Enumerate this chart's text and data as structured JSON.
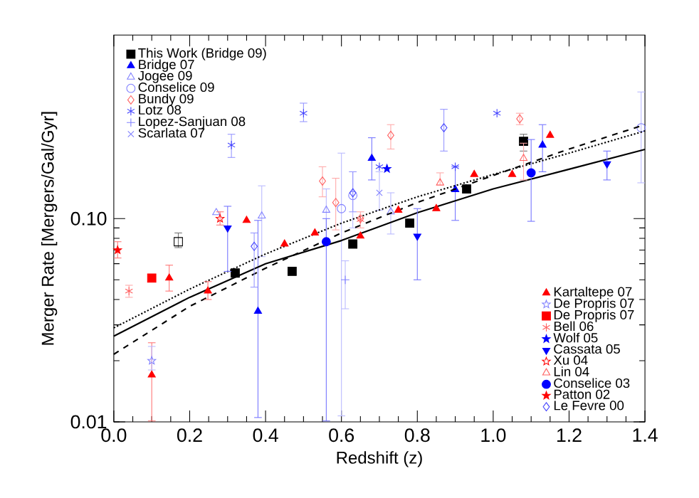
{
  "chart_data": {
    "type": "scatter",
    "xlabel": "Redshift (z)",
    "ylabel": "Merger Rate [Mergers/Gal/Gyr]",
    "xlim": [
      0,
      1.4
    ],
    "ylim": [
      0.01,
      0.8
    ],
    "log": true,
    "legend": "bottom right",
    "xticks": [
      {
        "value": 0,
        "label": "0.0"
      },
      {
        "value": 0.2,
        "label": "0.2"
      },
      {
        "value": 0.4,
        "label": "0.4"
      },
      {
        "value": 0.6,
        "label": "0.6"
      },
      {
        "value": 0.8,
        "label": "0.8"
      },
      {
        "value": 1.0,
        "label": "1.0"
      },
      {
        "value": 1.2,
        "label": "1.2"
      },
      {
        "value": 1.4,
        "label": "1.4"
      }
    ],
    "yticks": [
      {
        "value": 0.01,
        "label": "0.01"
      },
      {
        "value": 0.1,
        "label": "0.10"
      }
    ],
    "series": [
      {
        "type": "line",
        "color": "#000000",
        "line_style": "solid",
        "x": [
          0,
          0.2,
          0.4,
          0.6,
          0.8,
          1.0,
          1.2,
          1.4
        ],
        "values": [
          0.0264,
          0.041,
          0.06,
          0.078,
          0.107,
          0.14,
          0.175,
          0.219
        ]
      },
      {
        "type": "line",
        "color": "#000000",
        "line_style": "dashed",
        "x": [
          0,
          0.2,
          0.4,
          0.6,
          0.8,
          1.0,
          1.2,
          1.4
        ],
        "values": [
          0.0215,
          0.037,
          0.057,
          0.085,
          0.12,
          0.163,
          0.22,
          0.29
        ]
      },
      {
        "type": "line",
        "color": "#000000",
        "line_style": "dotted",
        "x": [
          0,
          0.2,
          0.4,
          0.6,
          0.8,
          1.0,
          1.2,
          1.4
        ],
        "values": [
          0.029,
          0.045,
          0.067,
          0.095,
          0.128,
          0.165,
          0.21,
          0.27
        ]
      },
      {
        "color": "#000000",
        "marker": "square",
        "x": [
          0.17
        ],
        "values": [
          0.077
        ],
        "errors": [
          [
            0.072,
            0.085
          ]
        ]
      },
      {
        "name": "This Work (Bridge 09)",
        "color": "#000000",
        "marker": "square",
        "x": [
          0.32,
          0.47,
          0.63,
          0.78,
          0.93,
          1.08
        ],
        "values": [
          0.054,
          0.055,
          0.075,
          0.095,
          0.14,
          0.24
        ],
        "errors": [
          null,
          null,
          null,
          null,
          null,
          [
            0.215,
            0.26
          ]
        ]
      },
      {
        "name": "Bridge 07",
        "color": "#0000ff",
        "marker": "triangle",
        "x": [
          0.38,
          0.68,
          0.9,
          1.13
        ],
        "values": [
          0.035,
          0.198,
          0.139,
          0.23
        ],
        "errors": [
          [
            0.0105,
            0.098
          ],
          [
            0.155,
            0.25
          ],
          [
            0.098,
            0.18
          ],
          [
            0.17,
            0.29
          ]
        ]
      },
      {
        "name": "Jogee 09",
        "color": "#8080ff",
        "marker": "triangle",
        "x": [
          0.27,
          0.39,
          0.56,
          0.73
        ],
        "values": [
          0.107,
          0.103,
          0.11,
          0.108
        ],
        "errors": [
          null,
          [
            0.065,
            0.145
          ],
          [
            0.075,
            0.14
          ],
          [
            0.084,
            0.134
          ]
        ]
      },
      {
        "name": "Conselice 09",
        "color": "#8080ff",
        "marker": "circle",
        "x": [
          0.6,
          0.63,
          1.39
        ],
        "values": [
          0.112,
          0.13,
          0.28
        ],
        "errors": [
          [
            0.0107,
            0.21
          ],
          [
            0.09,
            0.17
          ],
          [
            0.15,
            0.42
          ]
        ]
      },
      {
        "name": "Bundy 09",
        "color": "#ff6060",
        "marker": "diamond",
        "x": [
          0.55,
          0.585,
          0.65,
          0.73,
          1.07
        ],
        "values": [
          0.153,
          0.12,
          0.1,
          0.257,
          0.31
        ],
        "errors": [
          [
            0.128,
            0.18
          ],
          [
            0.088,
            0.158
          ],
          null,
          [
            0.22,
            0.29
          ],
          [
            0.29,
            0.33
          ]
        ]
      },
      {
        "name": "Lotz 08",
        "color": "#4040ff",
        "marker": "cross",
        "x": [
          0.31,
          0.5,
          0.7,
          0.9,
          1.01
        ],
        "values": [
          0.23,
          0.33,
          0.18,
          0.18,
          0.33
        ],
        "errors": [
          [
            0.2,
            0.26
          ],
          [
            0.3,
            0.37
          ],
          null,
          null,
          null
        ]
      },
      {
        "name": "Lopez-Sanjuan 08",
        "color": "#8080ff",
        "marker": "cross",
        "x": [
          0.61
        ],
        "values": [
          0.05
        ],
        "errors": [
          [
            0.036,
            0.062
          ]
        ]
      },
      {
        "name": "Scarlata 07",
        "color": "#8080ff",
        "marker": "cross",
        "x": [
          0.7
        ],
        "values": [
          0.134
        ],
        "errors": [
          [
            0.11,
            0.17
          ]
        ]
      },
      {
        "name": "Kartaltepe 07",
        "color": "#ff0000",
        "marker": "triangle",
        "x": [
          0.1,
          0.146,
          0.248,
          0.35,
          0.45,
          0.53,
          0.65,
          0.75,
          0.85,
          0.95,
          1.05,
          1.15
        ],
        "values": [
          0.017,
          0.051,
          0.044,
          0.098,
          0.075,
          0.085,
          0.082,
          0.11,
          0.112,
          0.165,
          0.165,
          0.257
        ],
        "errors": [
          [
            0.0101,
            0.0245
          ],
          [
            0.044,
            0.059
          ],
          [
            0.04,
            0.049
          ],
          null,
          null,
          null,
          null,
          null,
          null,
          null,
          null,
          null
        ]
      },
      {
        "name": "De Propris 07",
        "color": "#8080ff",
        "marker": "star",
        "x": [
          0.1
        ],
        "values": [
          0.02
        ],
        "errors": [
          [
            0.018,
            0.0235
          ]
        ]
      },
      {
        "name": "De Propris 07",
        "color": "#ff0000",
        "marker": "square",
        "x": [
          0.1
        ],
        "values": [
          0.051
        ]
      },
      {
        "name": "Bell 06",
        "color": "#ff6060",
        "marker": "cross",
        "x": [
          0.04,
          0.65
        ],
        "values": [
          0.044,
          0.099
        ],
        "errors": [
          [
            0.041,
            0.047
          ],
          [
            0.09,
            0.108
          ]
        ]
      },
      {
        "name": "Wolf 05",
        "color": "#0000ff",
        "marker": "star",
        "x": [
          0.72
        ],
        "values": [
          0.176
        ]
      },
      {
        "name": "Cassata 05",
        "color": "#0000ff",
        "marker": "triangle",
        "x": [
          0.3,
          0.8,
          1.3
        ],
        "values": [
          0.09,
          0.082,
          0.186
        ],
        "errors": [
          [
            0.055,
            0.115
          ],
          [
            0.05,
            0.112
          ],
          [
            0.155,
            0.215
          ]
        ]
      },
      {
        "name": "Xu 04",
        "color": "#ff0000",
        "marker": "star",
        "x": [
          0.28
        ],
        "values": [
          0.1
        ],
        "errors": [
          [
            0.093,
            0.108
          ]
        ]
      },
      {
        "name": "Lin 04",
        "color": "#ff6060",
        "marker": "triangle",
        "x": [
          0.86,
          1.08
        ],
        "values": [
          0.15,
          0.198
        ],
        "errors": [
          [
            0.146,
            0.168
          ],
          [
            0.155,
            0.235
          ]
        ]
      },
      {
        "name": "Conselice 03",
        "color": "#0000ff",
        "marker": "circle",
        "x": [
          0.56,
          1.1
        ],
        "values": [
          0.077,
          0.168
        ],
        "errors": [
          [
            0.0101,
            0.1
          ],
          [
            0.097,
            0.245
          ]
        ]
      },
      {
        "name": "Patton 02",
        "color": "#ff0000",
        "marker": "star",
        "x": [
          0.01
        ],
        "values": [
          0.07
        ],
        "errors": [
          [
            0.064,
            0.077
          ]
        ]
      },
      {
        "name": "Le Fevre 00",
        "color": "#4040ff",
        "marker": "diamond",
        "x": [
          0.37,
          0.63,
          0.87
        ],
        "values": [
          0.073,
          0.134,
          0.28
        ],
        "errors": [
          [
            0.046,
            0.085
          ],
          [
            0.108,
            0.17
          ],
          [
            0.215,
            0.345
          ]
        ]
      }
    ]
  }
}
